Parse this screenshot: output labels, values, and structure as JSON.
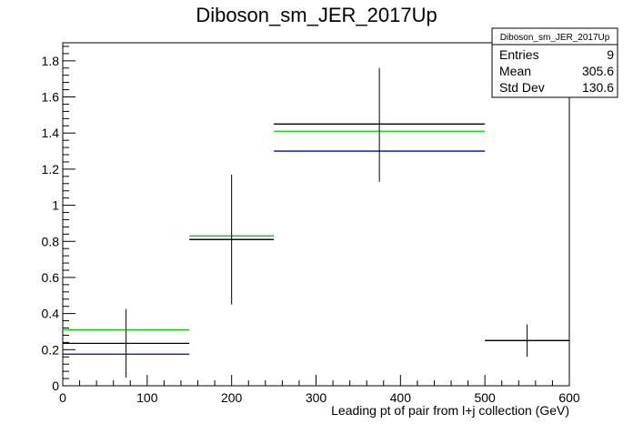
{
  "chart_data": {
    "type": "histogram",
    "title": "Diboson_sm_JER_2017Up",
    "xlabel": "Leading pt of pair from l+j collection (GeV)",
    "ylabel": "",
    "xlim": [
      0,
      600
    ],
    "ylim": [
      0,
      1.9
    ],
    "x_ticks": [
      0,
      100,
      200,
      300,
      400,
      500,
      600
    ],
    "y_ticks": [
      0,
      0.2,
      0.4,
      0.6,
      0.8,
      1,
      1.2,
      1.4,
      1.6,
      1.8
    ],
    "grid": false,
    "bin_edges": [
      0,
      150,
      250,
      500,
      600
    ],
    "series": [
      {
        "color": "#000000",
        "values": [
          0.235,
          0.81,
          1.45,
          0.25
        ],
        "errors_low": [
          0.19,
          0.36,
          0.32,
          0.09
        ],
        "errors_high": [
          0.19,
          0.36,
          0.31,
          0.09
        ],
        "error_x": [
          75,
          200,
          375,
          550
        ]
      },
      {
        "color": "#00cc00",
        "values": [
          0.31,
          0.83,
          1.41,
          0.25
        ]
      },
      {
        "color": "#0000cc",
        "values": [
          0.175,
          0.81,
          1.3,
          0.25
        ]
      }
    ],
    "stats_box": {
      "title": "Diboson_sm_JER_2017Up",
      "rows": [
        {
          "label": "Entries",
          "value": "9"
        },
        {
          "label": "Mean",
          "value": "305.6"
        },
        {
          "label": "Std Dev",
          "value": "130.6"
        }
      ]
    }
  }
}
